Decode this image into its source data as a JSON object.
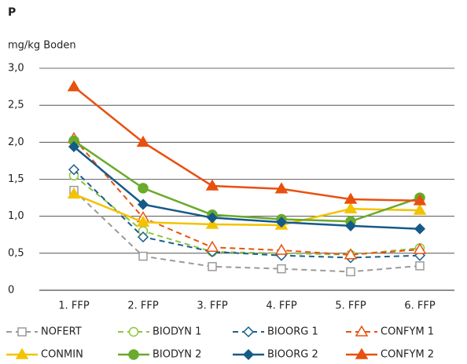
{
  "chart_data": {
    "type": "line",
    "title": "P",
    "y_label": "mg/kg Boden",
    "categories": [
      "1. FFP",
      "2. FFP",
      "3. FFP",
      "4. FFP",
      "5. FFP",
      "6. FFP"
    ],
    "ylim": [
      0,
      3
    ],
    "yticks": [
      0,
      {
        "value": 0.5,
        "label": "0,5"
      },
      {
        "value": 1,
        "label": "1,0"
      },
      {
        "value": 1.5,
        "label": "1,5"
      },
      {
        "value": 2,
        "label": "2,0"
      },
      {
        "value": 2.5,
        "label": "2,5"
      },
      {
        "value": 3,
        "label": "3,0"
      }
    ],
    "grid": true,
    "legend": "bottom",
    "series": [
      {
        "name": "NOFERT",
        "color": "#9a9a9a",
        "dashed": true,
        "marker": "square",
        "filled": false,
        "values": [
          1.35,
          0.46,
          0.32,
          0.29,
          0.25,
          0.33
        ]
      },
      {
        "name": "BIODYN 1",
        "color": "#8cc63e",
        "dashed": true,
        "marker": "circle",
        "filled": false,
        "values": [
          1.55,
          0.8,
          0.52,
          0.5,
          0.48,
          0.57
        ]
      },
      {
        "name": "BIOORG 1",
        "color": "#1c5f8c",
        "dashed": true,
        "marker": "diamond",
        "filled": false,
        "values": [
          1.63,
          0.72,
          0.52,
          0.47,
          0.44,
          0.47
        ]
      },
      {
        "name": "CONFYM 1",
        "color": "#e8520f",
        "dashed": true,
        "marker": "triangle",
        "filled": false,
        "values": [
          2.05,
          0.98,
          0.58,
          0.54,
          0.48,
          0.55
        ]
      },
      {
        "name": "CONMIN",
        "color": "#f3c300",
        "dashed": false,
        "marker": "triangle",
        "filled": true,
        "values": [
          1.3,
          0.92,
          0.89,
          0.88,
          1.1,
          1.08
        ]
      },
      {
        "name": "BIODYN 2",
        "color": "#6aaa2c",
        "dashed": false,
        "marker": "circle",
        "filled": true,
        "values": [
          2.02,
          1.38,
          1.02,
          0.96,
          0.93,
          1.25
        ]
      },
      {
        "name": "BIOORG 2",
        "color": "#165a88",
        "dashed": false,
        "marker": "diamond",
        "filled": true,
        "values": [
          1.94,
          1.16,
          0.98,
          0.92,
          0.87,
          0.83
        ]
      },
      {
        "name": "CONFYM 2",
        "color": "#e8500f",
        "dashed": false,
        "marker": "triangle",
        "filled": true,
        "values": [
          2.75,
          2.0,
          1.41,
          1.37,
          1.23,
          1.21
        ]
      }
    ]
  }
}
